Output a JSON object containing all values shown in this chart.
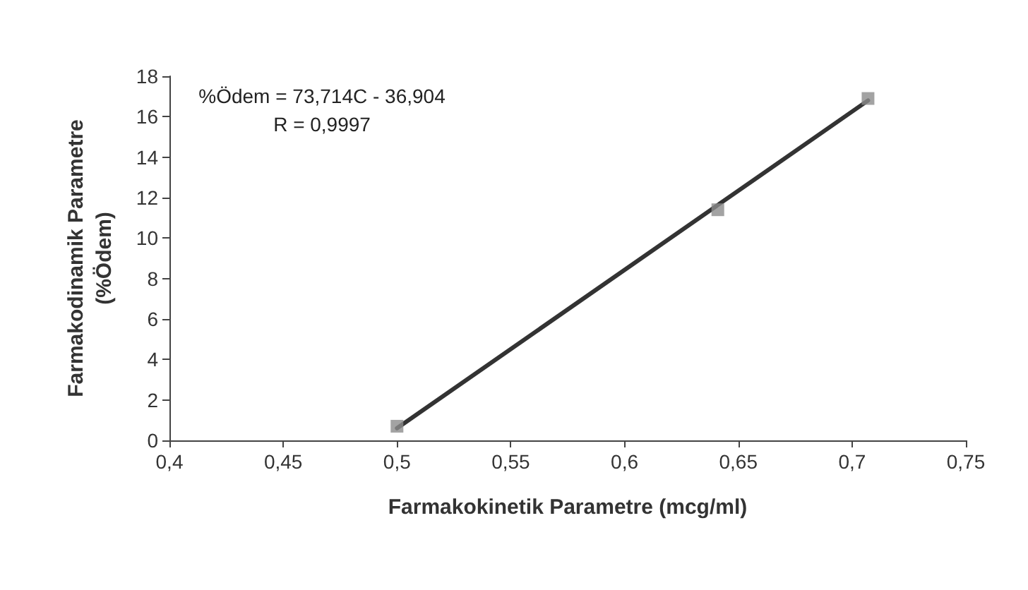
{
  "chart_data": {
    "type": "scatter",
    "xlabel": "Farmakokinetik Parametre (mcg/ml)",
    "ylabel": "Farmakodinamik Parametre\n(%Ödem)",
    "annotations": [
      "%Ödem = 73,714C - 36,904\nR = 0,9997"
    ],
    "xlim": [
      0.4,
      0.75
    ],
    "xticks": [
      {
        "value": 0.4,
        "label": "0,4"
      },
      {
        "value": 0.45,
        "label": "0,45"
      },
      {
        "value": 0.5,
        "label": "0,5"
      },
      {
        "value": 0.55,
        "label": "0,55"
      },
      {
        "value": 0.6,
        "label": "0,6"
      },
      {
        "value": 0.65,
        "label": "0,65"
      },
      {
        "value": 0.7,
        "label": "0,7"
      },
      {
        "value": 0.75,
        "label": "0,75"
      }
    ],
    "ylim": [
      0,
      18
    ],
    "yticks": [
      0,
      2,
      4,
      6,
      8,
      10,
      12,
      14,
      16,
      18
    ],
    "grid": false,
    "series": [
      {
        "color": "#8c8c8c",
        "marker": "square",
        "x": [
          0.5,
          0.641,
          0.707
        ],
        "values": [
          0.7,
          11.4,
          16.9
        ]
      },
      {
        "type": "line",
        "color": "#333333",
        "marker": "none",
        "line_style": "solid",
        "x": [
          0.5,
          0.707
        ],
        "values": [
          0.6,
          16.8
        ]
      }
    ]
  }
}
